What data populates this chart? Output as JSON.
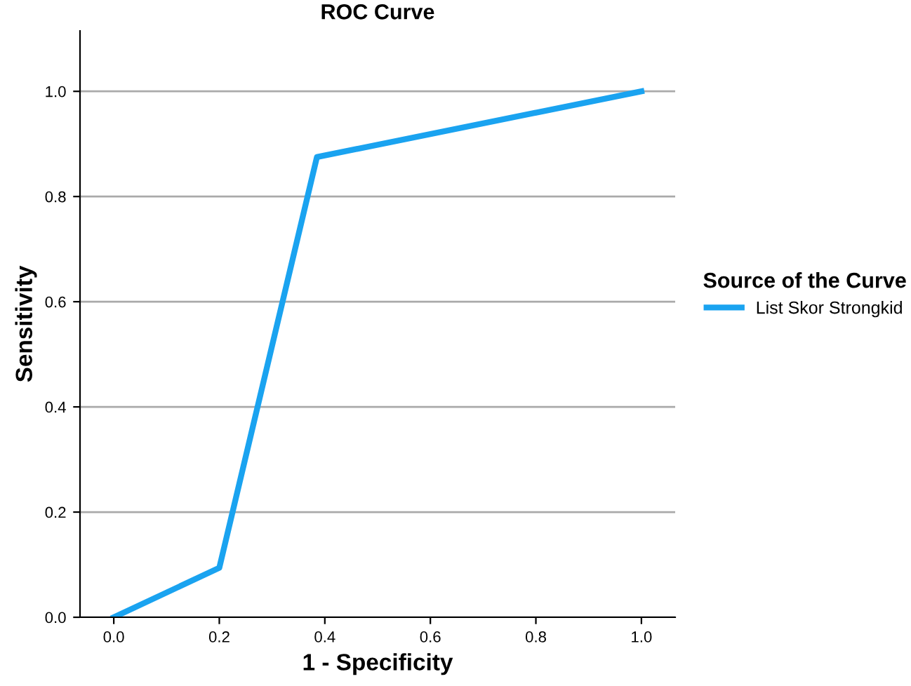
{
  "chart_data": {
    "type": "line",
    "title": "ROC Curve",
    "xlabel": "1 - Specificity",
    "ylabel": "Sensitivity",
    "legend_title": "Source of the Curve",
    "series": [
      {
        "name": "List Skor Strongkid",
        "color": "#1aa3f0",
        "x": [
          0.0,
          0.2,
          0.385,
          1.0
        ],
        "values": [
          0.0,
          0.094,
          0.875,
          1.0
        ]
      }
    ],
    "xlim": [
      -0.064,
      1.064
    ],
    "ylim": [
      0.0,
      1.115
    ],
    "xticks": [
      {
        "value": 0,
        "label": "0.0"
      },
      0.2,
      0.4,
      0.6,
      0.8,
      {
        "value": 1,
        "label": "1.0"
      }
    ],
    "yticks": [
      {
        "value": 0,
        "label": "0.0"
      },
      0.2,
      0.4,
      0.6,
      0.8,
      {
        "value": 1,
        "label": "1.0"
      }
    ],
    "grid": "y",
    "legend": "right",
    "marker": "none",
    "line_style": "solid"
  }
}
